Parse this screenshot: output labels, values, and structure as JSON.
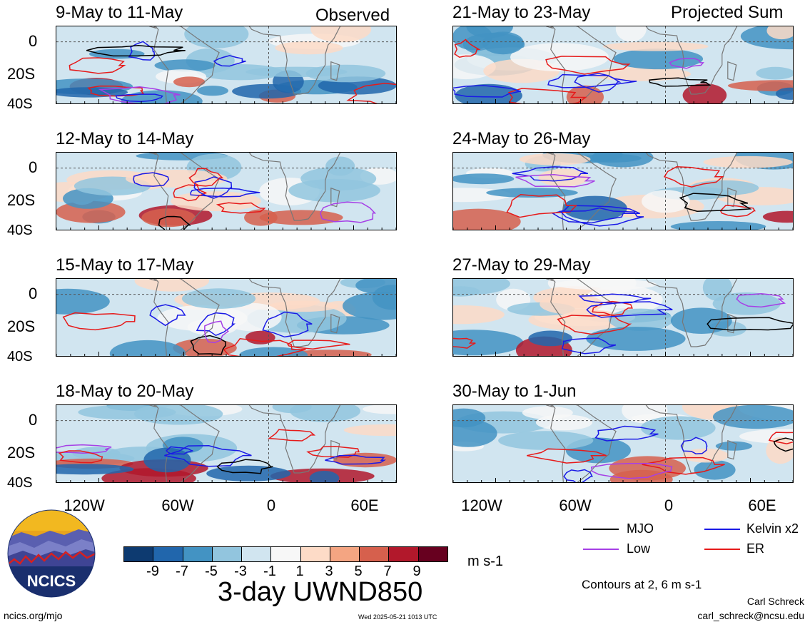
{
  "column_labels": {
    "left": "Observed",
    "right": "Projected Sum"
  },
  "panels": {
    "left": [
      "9-May to 11-May",
      "12-May to 14-May",
      "15-May to 17-May",
      "18-May to 20-May"
    ],
    "right": [
      "21-May to 23-May",
      "24-May to 26-May",
      "27-May to 29-May",
      "30-May to 1-Jun"
    ]
  },
  "lat_ticks": [
    "0",
    "20S",
    "40S"
  ],
  "lon_ticks": [
    "120W",
    "60W",
    "0",
    "60E"
  ],
  "legend": {
    "mjo": "MJO",
    "kelvin": "Kelvin x2",
    "low": "Low",
    "er": "ER",
    "colors": {
      "mjo": "#000000",
      "kelvin": "#1a1ae6",
      "low": "#a640e6",
      "er": "#e61a1a"
    }
  },
  "colorbar": {
    "labels": [
      "-9",
      "-7",
      "-5",
      "-3",
      "-1",
      "1",
      "3",
      "5",
      "7",
      "9"
    ],
    "colors": [
      "#0d3a70",
      "#2166ac",
      "#4393c3",
      "#92c5de",
      "#d1e5f0",
      "#f7f7f7",
      "#fddbc7",
      "#f4a582",
      "#d6604d",
      "#b2182b",
      "#67001f"
    ],
    "units": "m s-1"
  },
  "title": "3-day UWND850",
  "contours_note": "Contours at 2, 6 m s-1",
  "author": "Carl Schreck",
  "email": "carl_schreck@ncsu.edu",
  "site": "ncics.org/mjo",
  "timestamp": "Wed 2025-05-21 1013 UTC",
  "logo_text": "NCICS"
}
